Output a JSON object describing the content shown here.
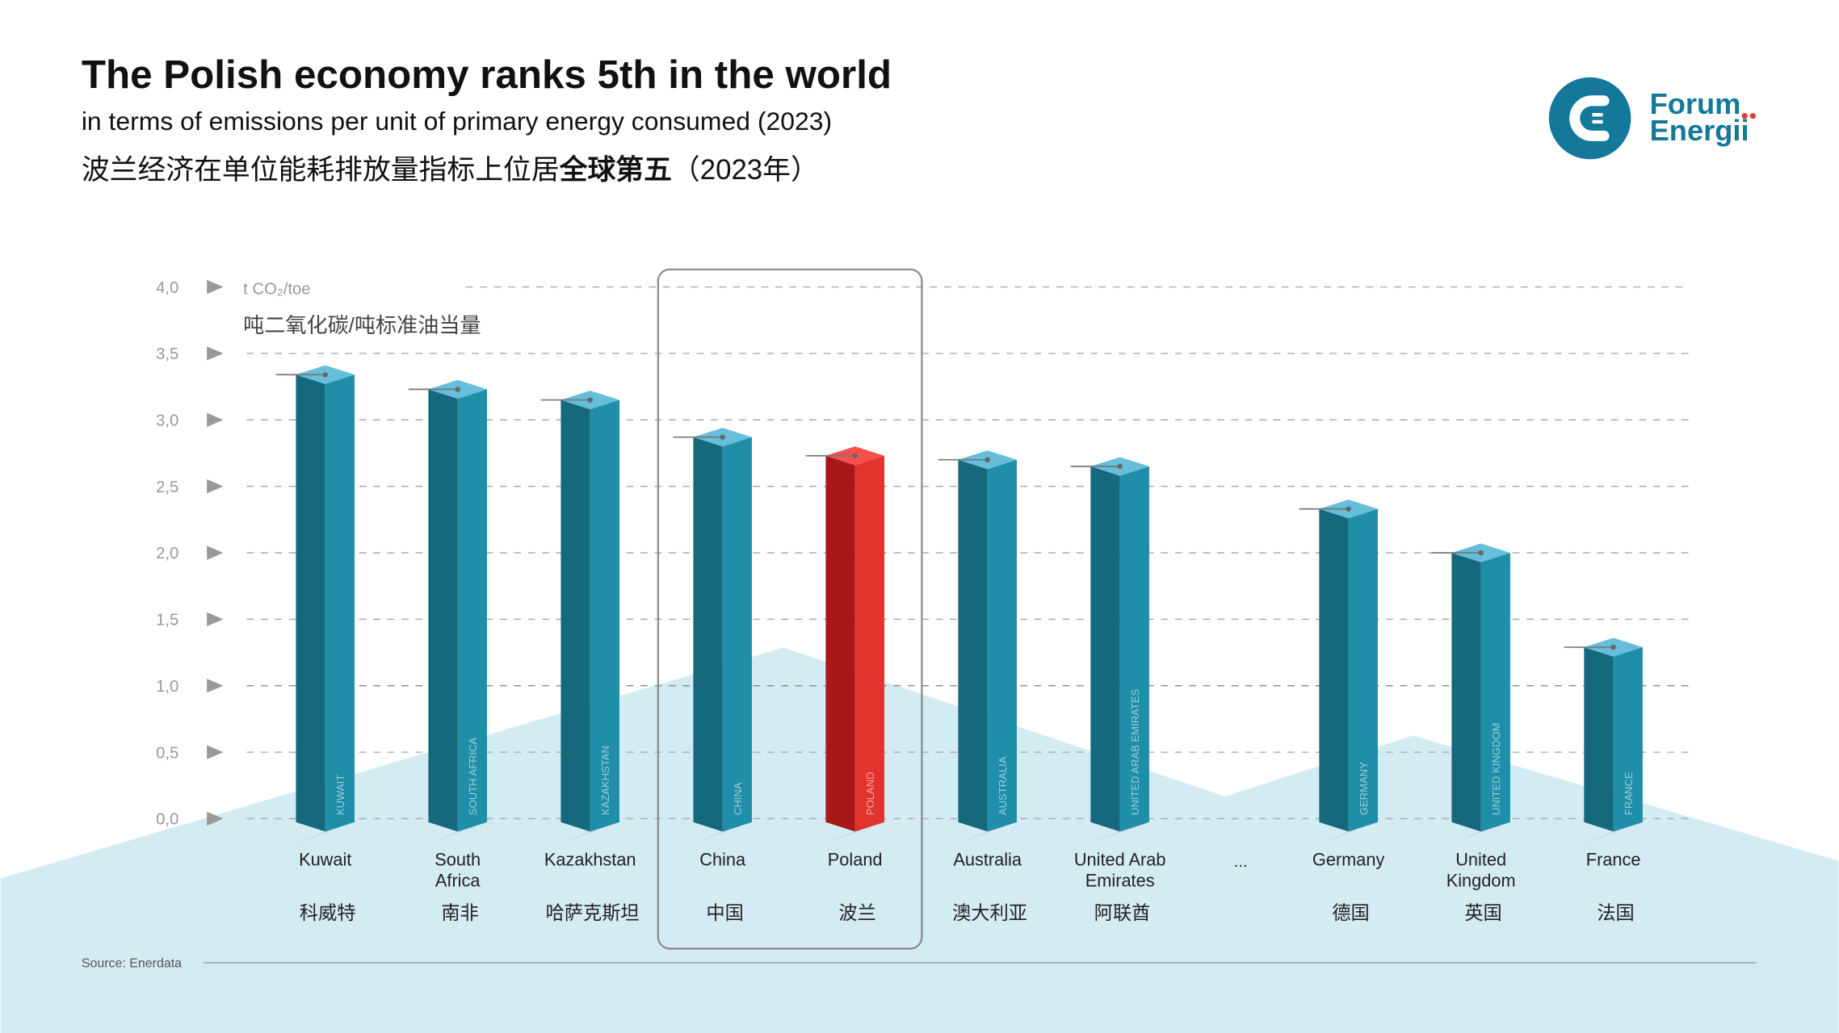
{
  "header": {
    "title": "The Polish economy ranks 5th in the world",
    "subtitle": "in terms of emissions per unit of primary energy consumed (2023)",
    "subtitle_cn_regular": "波兰经济在单位能耗排放量指标上位居",
    "subtitle_cn_bold": "全球第五",
    "subtitle_cn_end": "（2023年）"
  },
  "logo": {
    "line1": "Forum",
    "line2": "Energii"
  },
  "source": "Source: Enerdata",
  "colors": {
    "bar_dark": "#16687c",
    "bar_light": "#1f8ea9",
    "bar_top": "#66bedb",
    "poland_dark": "#a8181b",
    "poland_light": "#e2332d",
    "poland_top": "#f5504c",
    "mountain": "#d3ebf3",
    "brand": "#13789a"
  },
  "chart_data": {
    "type": "bar",
    "unit": "t CO₂/toe",
    "unit_cn": "吨二氧化碳/吨标准油当量",
    "ylim": [
      0,
      4
    ],
    "yticks": [
      "0,0",
      "0,5",
      "1,0",
      "1,5",
      "2,0",
      "2,5",
      "3,0",
      "3,5",
      "4,0"
    ],
    "grid": true,
    "highlight": [
      "China",
      "Poland"
    ],
    "ellipsis": "...",
    "bars": [
      {
        "name": "Kuwait",
        "name2": "",
        "cn": "科威特",
        "vertical": "KUWAIT",
        "value": 3.34
      },
      {
        "name": "South",
        "name2": "Africa",
        "cn": "南非",
        "vertical": "SOUTH AFRICA",
        "value": 3.23
      },
      {
        "name": "Kazakhstan",
        "name2": "",
        "cn": "哈萨克斯坦",
        "vertical": "KAZAKHSTAN",
        "value": 3.15
      },
      {
        "name": "China",
        "name2": "",
        "cn": "中国",
        "vertical": "CHINA",
        "value": 2.87
      },
      {
        "name": "Poland",
        "name2": "",
        "cn": "波兰",
        "vertical": "POLAND",
        "value": 2.73,
        "highlight": true
      },
      {
        "name": "Australia",
        "name2": "",
        "cn": "澳大利亚",
        "vertical": "AUSTRALIA",
        "value": 2.7
      },
      {
        "name": "United Arab",
        "name2": "Emirates",
        "cn": "阿联酋",
        "vertical": "UNITED ARAB EMIRATES",
        "value": 2.65
      },
      {
        "name": "Germany",
        "name2": "",
        "cn": "德国",
        "vertical": "GERMANY",
        "value": 2.33
      },
      {
        "name": "United",
        "name2": "Kingdom",
        "cn": "英国",
        "vertical": "UNITED KINGDOM",
        "value": 2.0
      },
      {
        "name": "France",
        "name2": "",
        "cn": "法国",
        "vertical": "FRANCE",
        "value": 1.29
      }
    ]
  }
}
